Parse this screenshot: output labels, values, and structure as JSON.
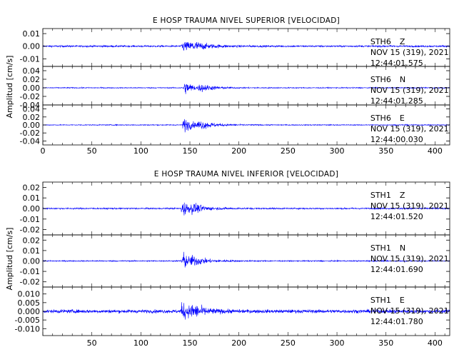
{
  "chart_data": [
    {
      "type": "line",
      "title": "E HOSP TRAUMA NIVEL SUPERIOR [VELOCIDAD]",
      "ylabel": "Amplitud [cm/s]",
      "xlabel": "",
      "xlim": [
        0,
        415
      ],
      "x_ticks": [
        0,
        50,
        100,
        150,
        200,
        250,
        300,
        350,
        400
      ],
      "x_tick_labels": [
        "0",
        "50",
        "100",
        "150",
        "200",
        "250",
        "300",
        "350",
        "400"
      ],
      "grid": false,
      "line_color": "#0000ff",
      "panels": [
        {
          "station": "STH6",
          "component": "Z",
          "date": "NOV 15 (319), 2021",
          "time": "12:44:01.575",
          "ylim": [
            -0.016,
            0.014
          ],
          "y_ticks": [
            0.01,
            0.0,
            -0.01
          ],
          "y_tick_labels": [
            "0.01",
            "0.00",
            "-0.01"
          ],
          "noise_amplitude": 0.0012,
          "events": [
            {
              "onset": 141,
              "peak": 0.011,
              "decay": 9,
              "rise": 1.5
            },
            {
              "onset": 150,
              "peak": 0.006,
              "decay": 18,
              "rise": 2
            }
          ]
        },
        {
          "station": "STH6",
          "component": "N",
          "date": "NOV 15 (319), 2021",
          "time": "12:44:01.285",
          "ylim": [
            -0.04,
            0.05
          ],
          "y_ticks": [
            0.04,
            0.02,
            0.0,
            -0.02,
            -0.04
          ],
          "y_tick_labels": [
            "0.04",
            "0.02",
            "0.00",
            "-0.02",
            "-0.04"
          ],
          "noise_amplitude": 0.002,
          "events": [
            {
              "onset": 143,
              "peak": 0.04,
              "decay": 8,
              "rise": 1.5
            },
            {
              "onset": 158,
              "peak": 0.018,
              "decay": 14,
              "rise": 2
            }
          ]
        },
        {
          "station": "STH6",
          "component": "E",
          "date": "NOV 15 (319), 2021",
          "time": "12:44:00.030",
          "ylim": [
            -0.05,
            0.05
          ],
          "y_ticks": [
            0.04,
            0.02,
            0.0,
            -0.02,
            -0.04
          ],
          "y_tick_labels": [
            "0.04",
            "0.02",
            "0.00",
            "-0.02",
            "-0.04"
          ],
          "noise_amplitude": 0.002,
          "events": [
            {
              "onset": 142,
              "peak": 0.045,
              "decay": 9,
              "rise": 1.5
            },
            {
              "onset": 157,
              "peak": 0.02,
              "decay": 16,
              "rise": 2
            }
          ]
        }
      ]
    },
    {
      "type": "line",
      "title": "E HOSP TRAUMA NIVEL INFERIOR [VELOCIDAD]",
      "ylabel": "Amplitud [cm/s]",
      "xlabel": "",
      "xlim": [
        0,
        415
      ],
      "x_ticks": [
        50,
        100,
        150,
        200,
        250,
        300,
        350,
        400
      ],
      "x_tick_labels": [
        "50",
        "100",
        "150",
        "200",
        "250",
        "300",
        "350",
        "400"
      ],
      "grid": false,
      "line_color": "#0000ff",
      "panels": [
        {
          "station": "STH1",
          "component": "Z",
          "date": "NOV 15 (319), 2021",
          "time": "12:44:01.520",
          "ylim": [
            -0.025,
            0.025
          ],
          "y_ticks": [
            0.02,
            0.01,
            0.0,
            -0.01,
            -0.02
          ],
          "y_tick_labels": [
            "0.02",
            "0.01",
            "0.00",
            "-0.01",
            "-0.02"
          ],
          "noise_amplitude": 0.0012,
          "events": [
            {
              "onset": 141,
              "peak": 0.02,
              "decay": 7,
              "rise": 1
            },
            {
              "onset": 150,
              "peak": 0.008,
              "decay": 14,
              "rise": 2
            }
          ]
        },
        {
          "station": "STH1",
          "component": "N",
          "date": "NOV 15 (319), 2021",
          "time": "12:44:01.690",
          "ylim": [
            -0.025,
            0.025
          ],
          "y_ticks": [
            0.02,
            0.01,
            0.0,
            -0.01,
            -0.02
          ],
          "y_tick_labels": [
            "0.02",
            "0.01",
            "0.00",
            "-0.01",
            "-0.02"
          ],
          "noise_amplitude": 0.001,
          "events": [
            {
              "onset": 141,
              "peak": 0.022,
              "decay": 7,
              "rise": 1
            },
            {
              "onset": 150,
              "peak": 0.008,
              "decay": 16,
              "rise": 2
            }
          ]
        },
        {
          "station": "STH1",
          "component": "E",
          "date": "NOV 15 (319), 2021",
          "time": "12:44:01.780",
          "ylim": [
            -0.014,
            0.014
          ],
          "y_ticks": [
            0.01,
            0.005,
            0.0,
            -0.005,
            -0.01
          ],
          "y_tick_labels": [
            "0.010",
            "0.005",
            "0.000",
            "-0.005",
            "-0.010"
          ],
          "noise_amplitude": 0.0018,
          "events": [
            {
              "onset": 140,
              "peak": 0.012,
              "decay": 9,
              "rise": 1.5
            },
            {
              "onset": 150,
              "peak": 0.006,
              "decay": 14,
              "rise": 2
            }
          ]
        }
      ]
    }
  ]
}
